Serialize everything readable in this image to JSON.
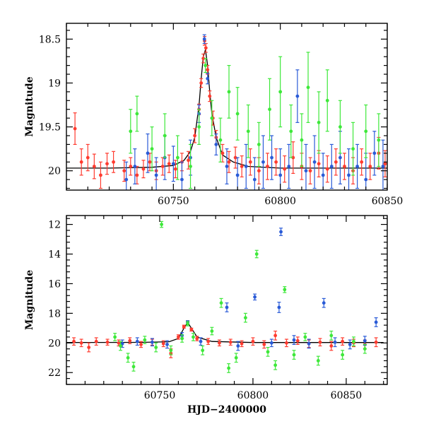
{
  "chart_data": [
    {
      "type": "scatter",
      "panel": "top",
      "title": "",
      "xlabel": "",
      "ylabel": "Magnitude",
      "xlim": [
        60700,
        60850
      ],
      "ylim": [
        20.22,
        18.32
      ],
      "y_inverted": true,
      "x_ticks": [
        60750,
        60800,
        60850
      ],
      "x_tick_labels": [
        "60750",
        "60800",
        "60850"
      ],
      "y_ticks": [
        18.5,
        19,
        19.5,
        20
      ],
      "y_tick_labels": [
        "18.5",
        "19",
        "19.5",
        "20"
      ],
      "grid": false,
      "legend": "none",
      "model_curve": {
        "color": "#000000",
        "x": [
          60700,
          60720,
          60740,
          60750,
          60755,
          60758,
          60760,
          60762,
          60763,
          60764,
          60765,
          60766,
          60767,
          60768,
          60770,
          60773,
          60778,
          60785,
          60800,
          60850
        ],
        "y": [
          19.97,
          19.97,
          19.96,
          19.94,
          19.88,
          19.78,
          19.62,
          19.25,
          18.95,
          18.7,
          18.62,
          18.8,
          19.1,
          19.35,
          19.62,
          19.82,
          19.9,
          19.95,
          19.97,
          19.97
        ]
      },
      "series": [
        {
          "color": "#ff3b2f",
          "x": [
            60704,
            60707,
            60710,
            60713,
            60716,
            60719,
            60722,
            60727,
            60730,
            60733,
            60736,
            60739,
            60742,
            60745,
            60748,
            60751,
            60754,
            60757,
            60760,
            60762,
            60763,
            60764,
            60764.6,
            60765.2,
            60766,
            60767,
            60768.5,
            60770,
            60773,
            60776,
            60779,
            60782,
            60786,
            60790,
            60794,
            60798,
            60802,
            60806,
            60810,
            60814,
            60818,
            60822,
            60826,
            60830,
            60834,
            60838,
            60842,
            60846,
            60849
          ],
          "y": [
            19.52,
            19.9,
            19.85,
            19.95,
            20.05,
            19.92,
            19.9,
            20.0,
            19.95,
            20.05,
            19.98,
            19.9,
            20.0,
            19.95,
            19.92,
            19.98,
            19.9,
            19.88,
            19.6,
            19.3,
            19.0,
            18.72,
            18.52,
            18.6,
            18.85,
            19.15,
            19.4,
            19.62,
            19.8,
            19.9,
            19.85,
            19.95,
            19.9,
            20.0,
            19.95,
            19.9,
            19.98,
            19.85,
            19.95,
            20.0,
            19.92,
            19.98,
            19.9,
            19.95,
            20.0,
            19.9,
            19.95,
            19.8,
            19.92
          ],
          "err": [
            0.18,
            0.15,
            0.15,
            0.14,
            0.15,
            0.12,
            0.12,
            0.12,
            0.1,
            0.1,
            0.1,
            0.1,
            0.1,
            0.1,
            0.1,
            0.1,
            0.1,
            0.1,
            0.08,
            0.06,
            0.05,
            0.05,
            0.05,
            0.05,
            0.05,
            0.06,
            0.08,
            0.08,
            0.1,
            0.12,
            0.12,
            0.12,
            0.15,
            0.15,
            0.15,
            0.15,
            0.15,
            0.18,
            0.15,
            0.15,
            0.15,
            0.15,
            0.15,
            0.15,
            0.15,
            0.15,
            0.15,
            0.18,
            0.15
          ]
        },
        {
          "color": "#2a5bd7",
          "x": [
            60728,
            60732,
            60738,
            60742,
            60746,
            60750,
            60754,
            60758,
            60762,
            60764.5,
            60766,
            60770,
            60775,
            60780,
            60784,
            60788,
            60792,
            60796,
            60800,
            60804,
            60808,
            60812,
            60816,
            60820,
            60824,
            60828,
            60832,
            60836,
            60840,
            60844,
            60848
          ],
          "y": [
            20.1,
            19.95,
            19.8,
            20.05,
            19.85,
            19.92,
            20.1,
            19.85,
            19.35,
            18.5,
            18.95,
            19.7,
            19.95,
            20.05,
            19.95,
            20.1,
            19.9,
            19.85,
            20.05,
            19.95,
            19.15,
            20.0,
            19.9,
            20.05,
            19.95,
            19.85,
            20.05,
            19.95,
            20.1,
            19.8,
            19.95
          ],
          "err": [
            0.2,
            0.2,
            0.22,
            0.2,
            0.25,
            0.2,
            0.2,
            0.2,
            0.1,
            0.05,
            0.06,
            0.12,
            0.2,
            0.2,
            0.25,
            0.25,
            0.3,
            0.25,
            0.3,
            0.25,
            0.3,
            0.3,
            0.3,
            0.25,
            0.25,
            0.3,
            0.3,
            0.25,
            0.3,
            0.25,
            0.3
          ]
        },
        {
          "color": "#3ee83a",
          "x": [
            60730,
            60733,
            60740,
            60746,
            60752,
            60758,
            60762,
            60765,
            60768,
            60772,
            60776,
            60780,
            60785,
            60790,
            60795,
            60800,
            60805,
            60810,
            60813,
            60818,
            60822,
            60828,
            60834,
            60840,
            60846
          ],
          "y": [
            19.55,
            19.35,
            19.75,
            19.6,
            19.85,
            19.95,
            19.5,
            18.8,
            19.4,
            19.65,
            19.1,
            19.35,
            19.55,
            19.7,
            19.3,
            19.1,
            19.55,
            19.65,
            19.05,
            19.45,
            19.2,
            19.5,
            19.75,
            19.55,
            19.65
          ],
          "err": [
            0.25,
            0.2,
            0.25,
            0.25,
            0.25,
            0.25,
            0.2,
            0.08,
            0.2,
            0.25,
            0.3,
            0.3,
            0.3,
            0.25,
            0.35,
            0.4,
            0.3,
            0.3,
            0.4,
            0.35,
            0.35,
            0.3,
            0.3,
            0.3,
            0.3
          ]
        }
      ]
    },
    {
      "type": "scatter",
      "panel": "bottom",
      "title": "",
      "xlabel": "HJD−2400000",
      "ylabel": "Magnitude",
      "xlim": [
        60700,
        60872
      ],
      "ylim": [
        22.8,
        11.4
      ],
      "y_inverted": true,
      "x_ticks": [
        60750,
        60800,
        60850
      ],
      "x_tick_labels": [
        "60750",
        "60800",
        "60850"
      ],
      "y_ticks": [
        12,
        14,
        16,
        18,
        20,
        22
      ],
      "y_tick_labels": [
        "12",
        "14",
        "16",
        "18",
        "20",
        "22"
      ],
      "grid": false,
      "legend": "none",
      "model_curve": {
        "color": "#000000",
        "x": [
          60700,
          60740,
          60755,
          60760,
          60763,
          60765,
          60767,
          60770,
          60778,
          60800,
          60870
        ],
        "y": [
          19.97,
          19.96,
          19.92,
          19.7,
          19.0,
          18.62,
          19.0,
          19.6,
          19.9,
          19.97,
          19.97
        ]
      },
      "series": [
        {
          "color": "#ff3b2f",
          "x": [
            60704,
            60708,
            60712,
            60716,
            60722,
            60728,
            60734,
            60740,
            60746,
            60752,
            60756,
            60760,
            60763,
            60765,
            60767,
            60770,
            60776,
            60782,
            60788,
            60794,
            60800,
            60806,
            60812,
            60818,
            60824,
            60830,
            60836,
            60842,
            60848,
            60854,
            60860,
            60866
          ],
          "y": [
            19.9,
            20.0,
            20.3,
            19.9,
            19.95,
            20.0,
            19.85,
            20.1,
            19.95,
            20.05,
            20.7,
            19.6,
            18.9,
            18.6,
            19.1,
            19.7,
            19.9,
            20.0,
            19.95,
            20.05,
            19.9,
            20.1,
            19.5,
            20.0,
            19.85,
            20.05,
            19.95,
            20.2,
            19.9,
            20.0,
            20.1,
            19.95
          ],
          "err": [
            0.25,
            0.25,
            0.3,
            0.25,
            0.2,
            0.2,
            0.2,
            0.2,
            0.2,
            0.2,
            0.3,
            0.15,
            0.1,
            0.1,
            0.1,
            0.15,
            0.2,
            0.2,
            0.2,
            0.2,
            0.25,
            0.25,
            0.3,
            0.25,
            0.25,
            0.25,
            0.25,
            0.3,
            0.25,
            0.25,
            0.3,
            0.3
          ]
        },
        {
          "color": "#2a5bd7",
          "x": [
            60730,
            60738,
            60746,
            60754,
            60762,
            60765,
            60772,
            60786,
            60792,
            60801,
            60810,
            60814,
            60815,
            60822,
            60830,
            60838,
            60844,
            60852,
            60860,
            60866
          ],
          "y": [
            20.05,
            19.9,
            19.95,
            20.1,
            19.5,
            18.6,
            19.9,
            17.6,
            20.2,
            16.9,
            20.0,
            17.6,
            12.5,
            19.8,
            20.05,
            17.3,
            19.95,
            20.1,
            19.85,
            18.6
          ],
          "err": [
            0.25,
            0.25,
            0.25,
            0.25,
            0.2,
            0.1,
            0.25,
            0.3,
            0.3,
            0.2,
            0.25,
            0.35,
            0.25,
            0.3,
            0.3,
            0.3,
            0.3,
            0.3,
            0.3,
            0.3
          ]
        },
        {
          "color": "#3ee83a",
          "x": [
            60726,
            60729,
            60733,
            60736,
            60742,
            60748,
            60751,
            60756,
            60762,
            60765,
            60768,
            60773,
            60778,
            60783,
            60787,
            60791,
            60796,
            60802,
            60808,
            60812,
            60817,
            60822,
            60828,
            60835,
            60842,
            60848,
            60854,
            60860
          ],
          "y": [
            19.6,
            20.2,
            21.0,
            21.6,
            19.8,
            20.3,
            12.0,
            20.5,
            19.7,
            18.7,
            19.6,
            20.5,
            19.2,
            17.3,
            21.7,
            21.0,
            18.3,
            14.0,
            20.6,
            21.5,
            16.4,
            20.8,
            19.6,
            21.2,
            19.5,
            20.8,
            19.9,
            20.4
          ],
          "err": [
            0.25,
            0.3,
            0.3,
            0.3,
            0.25,
            0.3,
            0.2,
            0.3,
            0.25,
            0.15,
            0.25,
            0.3,
            0.25,
            0.3,
            0.3,
            0.3,
            0.3,
            0.25,
            0.3,
            0.3,
            0.2,
            0.3,
            0.25,
            0.3,
            0.3,
            0.3,
            0.3,
            0.3
          ]
        }
      ]
    }
  ]
}
